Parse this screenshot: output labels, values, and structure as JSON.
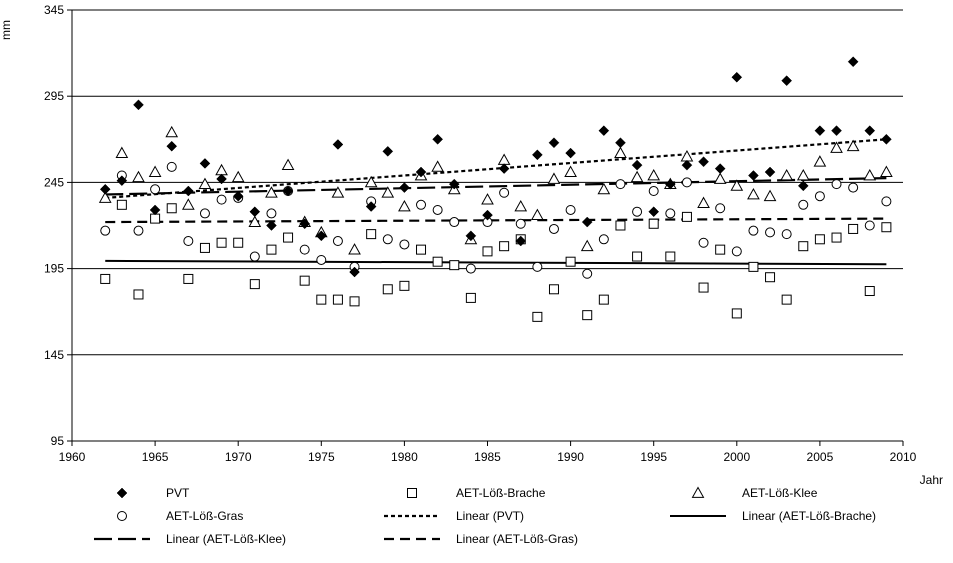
{
  "chart_data": {
    "type": "scatter",
    "title": "",
    "xlabel": "Jahr",
    "ylabel": "mm",
    "xlim": [
      1960,
      2010
    ],
    "ylim": [
      95,
      345
    ],
    "xticks": [
      1960,
      1965,
      1970,
      1975,
      1980,
      1985,
      1990,
      1995,
      2000,
      2005,
      2010
    ],
    "yticks": [
      95,
      145,
      195,
      245,
      295,
      345
    ],
    "grid": "horizontal",
    "legend_position": "bottom",
    "series": [
      {
        "name": "PVT",
        "marker": "diamond-filled",
        "color": "#000000",
        "x": [
          1962,
          1963,
          1964,
          1965,
          1966,
          1967,
          1968,
          1969,
          1970,
          1971,
          1972,
          1973,
          1974,
          1975,
          1976,
          1977,
          1978,
          1979,
          1980,
          1981,
          1982,
          1983,
          1984,
          1985,
          1986,
          1987,
          1988,
          1989,
          1990,
          1991,
          1992,
          1993,
          1994,
          1995,
          1996,
          1997,
          1998,
          1999,
          2000,
          2001,
          2002,
          2003,
          2004,
          2005,
          2006,
          2007,
          2008,
          2009
        ],
        "y": [
          241,
          246,
          290,
          229,
          266,
          240,
          256,
          247,
          237,
          228,
          220,
          240,
          221,
          214,
          267,
          193,
          231,
          263,
          242,
          251,
          270,
          244,
          214,
          226,
          253,
          211,
          261,
          268,
          262,
          222,
          275,
          268,
          255,
          228,
          244,
          255,
          257,
          253,
          306,
          249,
          251,
          304,
          243,
          275,
          275,
          315,
          275,
          270
        ]
      },
      {
        "name": "AET-Löß-Brache",
        "marker": "square-open",
        "color": "#000000",
        "x": [
          1962,
          1963,
          1964,
          1965,
          1966,
          1967,
          1968,
          1969,
          1970,
          1971,
          1972,
          1973,
          1974,
          1975,
          1976,
          1977,
          1978,
          1979,
          1980,
          1981,
          1982,
          1983,
          1984,
          1985,
          1986,
          1987,
          1988,
          1989,
          1990,
          1991,
          1992,
          1993,
          1994,
          1995,
          1996,
          1997,
          1998,
          1999,
          2000,
          2001,
          2002,
          2003,
          2004,
          2005,
          2006,
          2007,
          2008,
          2009
        ],
        "y": [
          189,
          232,
          180,
          224,
          230,
          189,
          207,
          210,
          210,
          186,
          206,
          213,
          188,
          177,
          177,
          176,
          215,
          183,
          185,
          206,
          199,
          197,
          178,
          205,
          208,
          212,
          167,
          183,
          199,
          168,
          177,
          220,
          202,
          221,
          202,
          225,
          184,
          206,
          169,
          196,
          190,
          177,
          208,
          212,
          213,
          218,
          182,
          219
        ]
      },
      {
        "name": "AET-Löß-Klee",
        "marker": "triangle-open",
        "color": "#000000",
        "x": [
          1962,
          1963,
          1964,
          1965,
          1966,
          1967,
          1968,
          1969,
          1970,
          1971,
          1972,
          1973,
          1974,
          1975,
          1976,
          1977,
          1978,
          1979,
          1980,
          1981,
          1982,
          1983,
          1984,
          1985,
          1986,
          1987,
          1988,
          1989,
          1990,
          1991,
          1992,
          1993,
          1994,
          1995,
          1996,
          1997,
          1998,
          1999,
          2000,
          2001,
          2002,
          2003,
          2004,
          2005,
          2006,
          2007,
          2008,
          2009
        ],
        "y": [
          236,
          262,
          248,
          251,
          274,
          232,
          244,
          252,
          248,
          222,
          239,
          255,
          222,
          216,
          239,
          206,
          245,
          239,
          231,
          249,
          254,
          241,
          212,
          235,
          258,
          231,
          226,
          247,
          251,
          208,
          241,
          262,
          248,
          249,
          244,
          260,
          233,
          247,
          243,
          238,
          237,
          249,
          249,
          257,
          265,
          266,
          249,
          251
        ]
      },
      {
        "name": "AET-Löß-Gras",
        "marker": "circle-open",
        "color": "#000000",
        "x": [
          1962,
          1963,
          1964,
          1965,
          1966,
          1967,
          1968,
          1969,
          1970,
          1971,
          1972,
          1973,
          1974,
          1975,
          1976,
          1977,
          1978,
          1979,
          1980,
          1981,
          1982,
          1983,
          1984,
          1985,
          1986,
          1987,
          1988,
          1989,
          1990,
          1991,
          1992,
          1993,
          1994,
          1995,
          1996,
          1997,
          1998,
          1999,
          2000,
          2001,
          2002,
          2003,
          2004,
          2005,
          2006,
          2007,
          2008,
          2009
        ],
        "y": [
          217,
          249,
          217,
          241,
          254,
          211,
          227,
          235,
          236,
          202,
          227,
          240,
          206,
          200,
          211,
          196,
          234,
          212,
          209,
          232,
          229,
          222,
          195,
          222,
          239,
          221,
          196,
          218,
          229,
          192,
          212,
          244,
          228,
          240,
          227,
          245,
          210,
          230,
          205,
          217,
          216,
          215,
          232,
          237,
          244,
          242,
          220,
          234
        ]
      }
    ],
    "trendlines": [
      {
        "name": "Linear (PVT)",
        "of": "PVT",
        "style": "dotted",
        "x": [
          1962,
          2009
        ],
        "y": [
          236,
          270
        ]
      },
      {
        "name": "Linear (AET-Löß-Brache)",
        "of": "AET-Löß-Brache",
        "style": "solid",
        "x": [
          1962,
          2009
        ],
        "y": [
          199.5,
          197.5
        ]
      },
      {
        "name": "Linear (AET-Löß-Klee)",
        "of": "AET-Löß-Klee",
        "style": "long-dash",
        "x": [
          1962,
          2009
        ],
        "y": [
          238,
          247.5
        ]
      },
      {
        "name": "Linear (AET-Löß-Gras)",
        "of": "AET-Löß-Gras",
        "style": "dash",
        "x": [
          1962,
          2009
        ],
        "y": [
          222,
          224
        ]
      }
    ],
    "legend": [
      {
        "label": "PVT",
        "symbol": "diamond-filled"
      },
      {
        "label": "AET-Löß-Brache",
        "symbol": "square-open"
      },
      {
        "label": "AET-Löß-Klee",
        "symbol": "triangle-open"
      },
      {
        "label": "AET-Löß-Gras",
        "symbol": "circle-open"
      },
      {
        "label": "Linear (PVT)",
        "symbol": "dotted"
      },
      {
        "label": "Linear (AET-Löß-Brache)",
        "symbol": "solid"
      },
      {
        "label": "Linear (AET-Löß-Klee)",
        "symbol": "long-dash"
      },
      {
        "label": "Linear (AET-Löß-Gras)",
        "symbol": "dash"
      }
    ]
  }
}
